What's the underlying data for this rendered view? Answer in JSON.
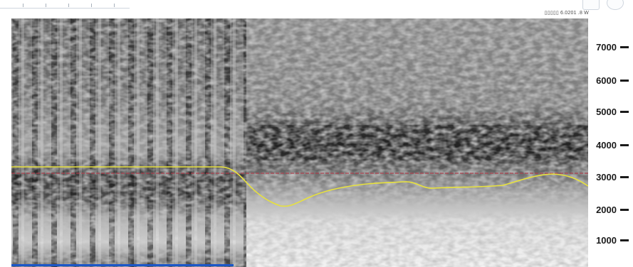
{
  "toolbar": {
    "caption": "▯▯▯▯▯  6.0201  .8 W"
  },
  "axis": {
    "ticks": [
      {
        "label": "7000"
      },
      {
        "label": "6000"
      },
      {
        "label": "5000"
      },
      {
        "label": "4000"
      },
      {
        "label": "3000"
      },
      {
        "label": "2000"
      },
      {
        "label": "1000"
      }
    ]
  },
  "colors": {
    "formant_yellow": "#e8e23c",
    "reference_red": "#b03a48",
    "timeline_blue": "#1a56c8"
  }
}
